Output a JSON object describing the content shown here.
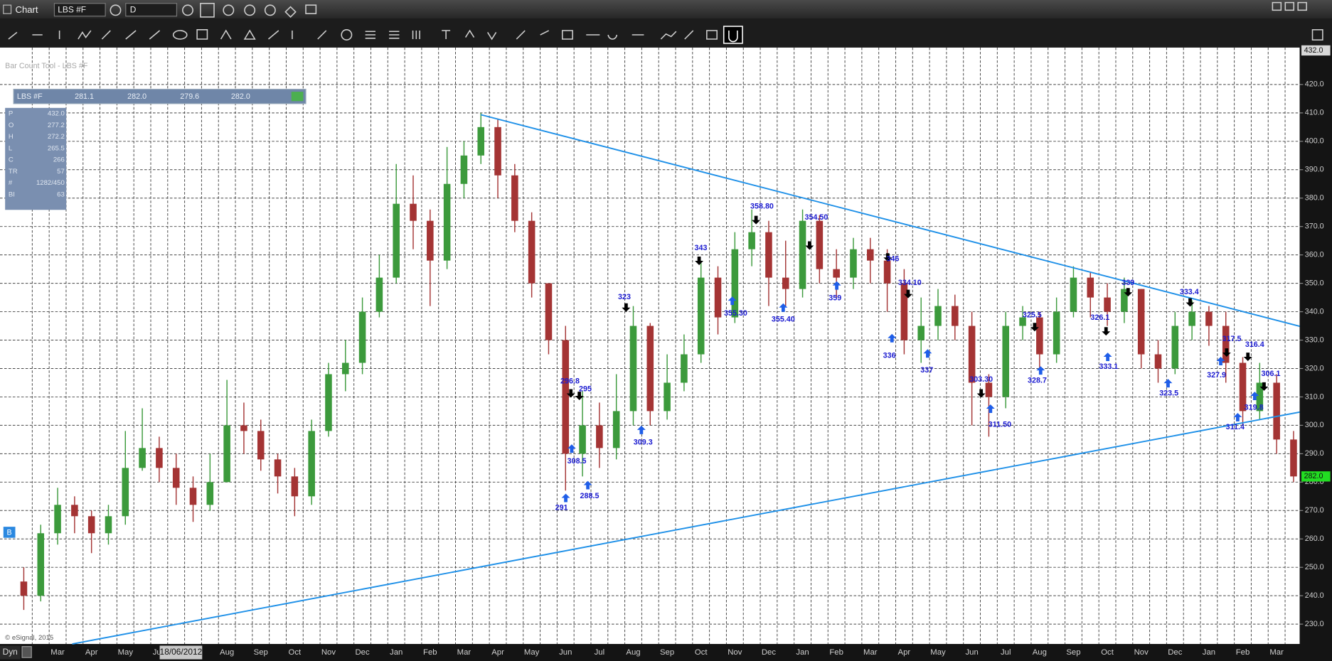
{
  "window": {
    "title": "Chart",
    "symbol": "LBS #F",
    "interval": "D",
    "study": "Bar Count Tool - LBS #F",
    "copyright": "© eSignal, 2015",
    "mode": "Dyn",
    "badge": "B",
    "cursor_date": "18/06/2012"
  },
  "quote": {
    "symbol": "LBS #F",
    "values": [
      "281.1",
      "282.0",
      "279.6",
      "282.0"
    ]
  },
  "data_window": [
    [
      "P",
      "432.0"
    ],
    [
      "O",
      "277.2"
    ],
    [
      "H",
      "272.2"
    ],
    [
      "L",
      "265.5"
    ],
    [
      "C",
      "266"
    ],
    [
      "TR",
      "57"
    ],
    [
      "#",
      "1282/450"
    ],
    [
      "BI",
      "63"
    ]
  ],
  "chart_data": {
    "type": "candlestick",
    "categories": [
      null,
      null,
      "Mar",
      null,
      "Apr",
      null,
      "May",
      null,
      "Jun",
      null,
      null,
      null,
      "Aug",
      null,
      "Sep",
      null,
      "Oct",
      null,
      "Nov",
      null,
      "Dec",
      null,
      "Jan",
      null,
      "Feb",
      null,
      "Mar",
      null,
      "Apr",
      null,
      "May",
      null,
      "Jun",
      null,
      "Jul",
      null,
      "Aug",
      null,
      "Sep",
      null,
      "Oct",
      null,
      "Nov",
      null,
      "Dec",
      null,
      "Jan",
      null,
      "Feb",
      null,
      "Mar",
      null,
      "Apr",
      null,
      "May",
      null,
      "Jun",
      null,
      "Jul",
      null,
      "Aug",
      null,
      "Sep",
      null,
      "Oct",
      null,
      "Nov",
      null,
      "Dec",
      null,
      "Jan",
      null,
      "Feb",
      null,
      "Mar",
      null
    ],
    "open": [
      245,
      240,
      262,
      272,
      268,
      262,
      268,
      285,
      292,
      285,
      278,
      272,
      280,
      300,
      298,
      288,
      282,
      275,
      298,
      318,
      322,
      340,
      352,
      378,
      372,
      358,
      385,
      395,
      405,
      388,
      372,
      350,
      330,
      290,
      300,
      292,
      305,
      335,
      305,
      315,
      325,
      352,
      338,
      362,
      368,
      352,
      348,
      372,
      355,
      352,
      362,
      358,
      350,
      330,
      335,
      342,
      335,
      315,
      310,
      335,
      338,
      325,
      340,
      352,
      345,
      340,
      348,
      325,
      320,
      335,
      340,
      335,
      322,
      305,
      315,
      295
    ],
    "high": [
      250,
      265,
      278,
      275,
      270,
      272,
      298,
      306,
      296,
      290,
      282,
      290,
      316,
      308,
      302,
      290,
      285,
      302,
      322,
      330,
      345,
      360,
      392,
      388,
      376,
      398,
      400,
      410,
      408,
      392,
      375,
      350,
      335,
      312,
      308,
      318,
      342,
      336,
      325,
      332,
      358,
      356,
      368,
      376,
      372,
      365,
      376,
      374,
      362,
      366,
      366,
      362,
      355,
      345,
      348,
      346,
      340,
      318,
      340,
      342,
      340,
      345,
      356,
      354,
      350,
      352,
      348,
      330,
      340,
      344,
      342,
      340,
      324,
      322,
      318,
      298
    ],
    "low": [
      235,
      238,
      258,
      262,
      255,
      258,
      265,
      284,
      280,
      272,
      266,
      270,
      280,
      290,
      284,
      276,
      268,
      272,
      296,
      312,
      318,
      338,
      350,
      362,
      342,
      355,
      380,
      392,
      380,
      368,
      345,
      325,
      277,
      282,
      285,
      288,
      300,
      300,
      302,
      312,
      322,
      332,
      336,
      356,
      342,
      342,
      345,
      350,
      345,
      348,
      350,
      340,
      325,
      322,
      330,
      330,
      300,
      296,
      306,
      330,
      320,
      322,
      338,
      338,
      335,
      336,
      320,
      315,
      318,
      330,
      328,
      315,
      300,
      302,
      290,
      280
    ],
    "close": [
      240,
      262,
      272,
      268,
      262,
      268,
      285,
      292,
      285,
      278,
      272,
      280,
      300,
      298,
      288,
      282,
      275,
      298,
      318,
      322,
      340,
      352,
      378,
      372,
      358,
      385,
      395,
      405,
      388,
      372,
      350,
      330,
      290,
      300,
      292,
      305,
      335,
      305,
      315,
      325,
      352,
      338,
      362,
      368,
      352,
      348,
      372,
      355,
      352,
      362,
      358,
      350,
      330,
      335,
      342,
      335,
      315,
      310,
      335,
      338,
      325,
      340,
      352,
      345,
      340,
      348,
      325,
      320,
      335,
      340,
      335,
      322,
      305,
      315,
      295,
      282
    ],
    "up_color": "#3c9a3c",
    "down_color": "#a43434",
    "ylim": [
      223,
      433
    ],
    "yticks": [
      {
        "value": 230,
        "label": "230.0"
      },
      {
        "value": 240,
        "label": "240.0"
      },
      {
        "value": 250,
        "label": "250.0"
      },
      {
        "value": 260,
        "label": "260.0"
      },
      {
        "value": 270,
        "label": "270.0"
      },
      {
        "value": 280,
        "label": "280.0"
      },
      {
        "value": 290,
        "label": "290.0"
      },
      {
        "value": 300,
        "label": "300.0"
      },
      {
        "value": 310,
        "label": "310.0"
      },
      {
        "value": 320,
        "label": "320.0"
      },
      {
        "value": 330,
        "label": "330.0"
      },
      {
        "value": 340,
        "label": "340.0"
      },
      {
        "value": 350,
        "label": "350.0"
      },
      {
        "value": 360,
        "label": "360.0"
      },
      {
        "value": 370,
        "label": "370.0"
      },
      {
        "value": 380,
        "label": "380.0"
      },
      {
        "value": 390,
        "label": "390.0"
      },
      {
        "value": 400,
        "label": "400.0"
      },
      {
        "value": 410,
        "label": "410.0"
      },
      {
        "value": 420,
        "label": "420.0"
      }
    ],
    "price_markers": [
      {
        "value": 432,
        "label": "432.0",
        "color": "#d8d8d8"
      },
      {
        "value": 282,
        "label": "282.0",
        "color": "#22dd22"
      }
    ],
    "grid": true,
    "annotations": [
      {
        "text": "291",
        "dir": "up"
      },
      {
        "text": "296.8",
        "dir": "down"
      },
      {
        "text": "295",
        "dir": "down"
      },
      {
        "text": "308.5",
        "dir": "up"
      },
      {
        "text": "288.5",
        "dir": "up"
      },
      {
        "text": "323",
        "dir": "down"
      },
      {
        "text": "309.3",
        "dir": "up"
      },
      {
        "text": "343",
        "dir": "down"
      },
      {
        "text": "355.30",
        "dir": "up"
      },
      {
        "text": "358.80",
        "dir": "down"
      },
      {
        "text": "355.40",
        "dir": "up"
      },
      {
        "text": "354.50",
        "dir": "down"
      },
      {
        "text": "359",
        "dir": "up"
      },
      {
        "text": "346",
        "dir": "down"
      },
      {
        "text": "334.10",
        "dir": "down"
      },
      {
        "text": "336",
        "dir": "up"
      },
      {
        "text": "337",
        "dir": "up"
      },
      {
        "text": "303.30",
        "dir": "down"
      },
      {
        "text": "311.50",
        "dir": "up"
      },
      {
        "text": "325.5",
        "dir": "down"
      },
      {
        "text": "328.7",
        "dir": "up"
      },
      {
        "text": "326.1",
        "dir": "down"
      },
      {
        "text": "333.1",
        "dir": "up"
      },
      {
        "text": "339",
        "dir": "down"
      },
      {
        "text": "323.5",
        "dir": "up"
      },
      {
        "text": "333.4",
        "dir": "down"
      },
      {
        "text": "317.5",
        "dir": "down"
      },
      {
        "text": "327.9",
        "dir": "up"
      },
      {
        "text": "316.4",
        "dir": "down"
      },
      {
        "text": "319.8",
        "dir": "up"
      },
      {
        "text": "311.4",
        "dir": "up"
      },
      {
        "text": "306.1",
        "dir": "down"
      }
    ]
  }
}
